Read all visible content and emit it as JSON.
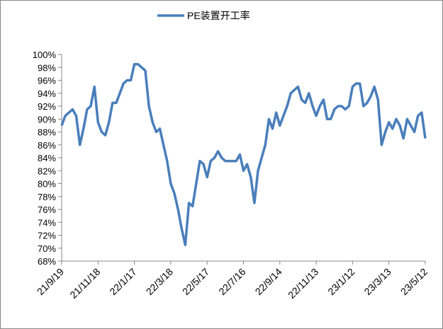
{
  "chart_data": {
    "type": "line",
    "categories": [
      "21/9/19",
      null,
      null,
      null,
      null,
      null,
      null,
      null,
      null,
      null,
      "21/11/18",
      null,
      null,
      null,
      null,
      null,
      null,
      null,
      null,
      null,
      "22/1/17",
      null,
      null,
      null,
      null,
      null,
      null,
      null,
      null,
      null,
      "22/3/18",
      null,
      null,
      null,
      null,
      null,
      null,
      null,
      null,
      null,
      "22/5/17",
      null,
      null,
      null,
      null,
      null,
      null,
      null,
      null,
      null,
      "22/7/16",
      null,
      null,
      null,
      null,
      null,
      null,
      null,
      null,
      null,
      "22/9/14",
      null,
      null,
      null,
      null,
      null,
      null,
      null,
      null,
      null,
      "22/11/13",
      null,
      null,
      null,
      null,
      null,
      null,
      null,
      null,
      null,
      "23/1/12",
      null,
      null,
      null,
      null,
      null,
      null,
      null,
      null,
      null,
      "23/3/13",
      null,
      null,
      null,
      null,
      null,
      null,
      null,
      null,
      null,
      "23/5/12"
    ],
    "series": [
      {
        "name": "PE装置开工率",
        "color": "#4a7ebb",
        "values": [
          89,
          90.5,
          91,
          91.5,
          90.5,
          86,
          88.5,
          91.5,
          92,
          95,
          89.5,
          88,
          87.5,
          89.5,
          92.5,
          92.5,
          94,
          95.5,
          96,
          96,
          98.5,
          98.5,
          98,
          97.5,
          92,
          89.5,
          88,
          88.5,
          86,
          83.5,
          80,
          78.5,
          76,
          73,
          70.5,
          77,
          76.5,
          80,
          83.5,
          83,
          81,
          83.5,
          84,
          85,
          84,
          83.5,
          83.5,
          83.5,
          83.5,
          84.5,
          82,
          83,
          81,
          77,
          82,
          84,
          86,
          90,
          88.5,
          91,
          89,
          90.5,
          92,
          94,
          94.5,
          95,
          93,
          92.5,
          94,
          92,
          90.5,
          92,
          93,
          90,
          90,
          91.5,
          92,
          92,
          91.5,
          92,
          95,
          95.5,
          95.5,
          92,
          92.5,
          93.5,
          95,
          93,
          86,
          88,
          89.5,
          88.5,
          90,
          89,
          87,
          90,
          89,
          88,
          90.5,
          91,
          87
        ]
      }
    ],
    "ylim": [
      68,
      100
    ],
    "yticks": [
      {
        "value": 68,
        "label": "68%"
      },
      {
        "value": 70,
        "label": "70%"
      },
      {
        "value": 72,
        "label": "72%"
      },
      {
        "value": 74,
        "label": "74%"
      },
      {
        "value": 76,
        "label": "76%"
      },
      {
        "value": 78,
        "label": "78%"
      },
      {
        "value": 80,
        "label": "80%"
      },
      {
        "value": 82,
        "label": "82%"
      },
      {
        "value": 84,
        "label": "84%"
      },
      {
        "value": 86,
        "label": "86%"
      },
      {
        "value": 88,
        "label": "88%"
      },
      {
        "value": 90,
        "label": "90%"
      },
      {
        "value": 92,
        "label": "92%"
      },
      {
        "value": 94,
        "label": "94%"
      },
      {
        "value": 96,
        "label": "96%"
      },
      {
        "value": 98,
        "label": "98%"
      },
      {
        "value": 100,
        "label": "100%"
      }
    ],
    "legend": "top",
    "grid": false
  }
}
